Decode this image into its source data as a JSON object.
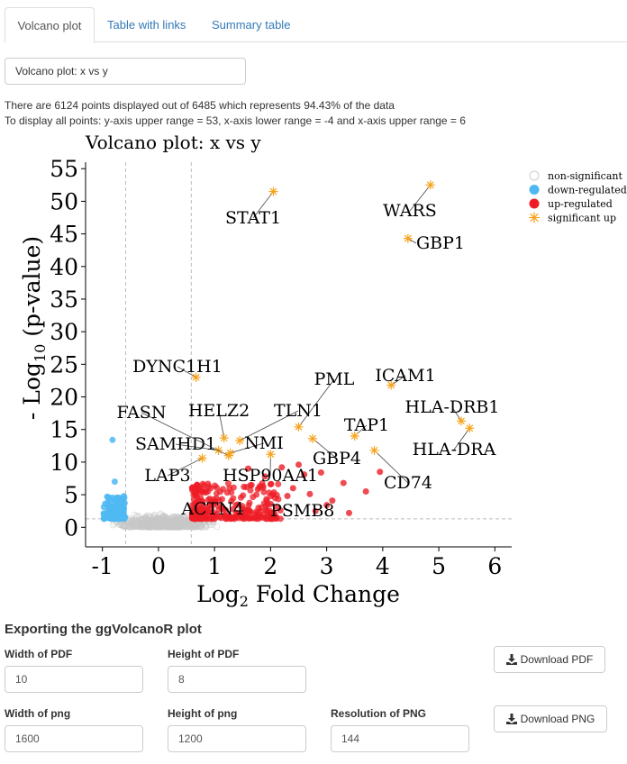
{
  "tabs": [
    {
      "label": "Volcano plot"
    },
    {
      "label": "Table with links"
    },
    {
      "label": "Summary table"
    }
  ],
  "select": {
    "value": "Volcano plot: x vs y"
  },
  "info": {
    "line1": "There are 6124 points displayed out of 6485 which represents 94.43% of the data",
    "line2": "To display all points: y-axis upper range = 53, x-axis lower range = -4 and x-axis upper range = 6"
  },
  "chart_data": {
    "type": "scatter",
    "title": "Volcano plot: x vs y",
    "xlabel": "Log2 Fold Change",
    "ylabel": "- Log10 (p-value)",
    "xlim": [
      -1.3,
      6.3
    ],
    "ylim": [
      -3,
      56
    ],
    "xticks": [
      "-1",
      "0",
      "1",
      "2",
      "3",
      "4",
      "5",
      "6"
    ],
    "yticks": [
      "0",
      "5",
      "10",
      "15",
      "20",
      "25",
      "30",
      "35",
      "40",
      "45",
      "50",
      "55"
    ],
    "threshold_x": [
      -0.585,
      0.585
    ],
    "threshold_y": 1.3,
    "legend": {
      "position": "right",
      "items": [
        "non-significant",
        "down-regulated",
        "up-regulated",
        "significant up"
      ]
    },
    "colors": {
      "nonsig": "#c8c8c8",
      "down": "#4fb8f2",
      "up": "#ee1c25",
      "sig": "#f6a31b"
    },
    "significant_up": [
      {
        "name": "WARS",
        "x": 4.85,
        "y": 52.5
      },
      {
        "name": "STAT1",
        "x": 2.05,
        "y": 51.5
      },
      {
        "name": "GBP1",
        "x": 4.45,
        "y": 44.3
      },
      {
        "name": "DYNC1H1",
        "x": 0.67,
        "y": 23.0
      },
      {
        "name": "ICAM1",
        "x": 4.15,
        "y": 21.8
      },
      {
        "name": "PML",
        "x": 2.5,
        "y": 15.4
      },
      {
        "name": "HLA-DRB1",
        "x": 5.4,
        "y": 16.3
      },
      {
        "name": "HLA-DRA",
        "x": 5.55,
        "y": 15.2
      },
      {
        "name": "TAP1",
        "x": 3.5,
        "y": 14.0
      },
      {
        "name": "TLN1",
        "x": 1.45,
        "y": 13.3
      },
      {
        "name": "GBP4",
        "x": 2.75,
        "y": 13.6
      },
      {
        "name": "HELZ2",
        "x": 1.17,
        "y": 13.7
      },
      {
        "name": "NMI",
        "x": 1.28,
        "y": 11.4
      },
      {
        "name": "SAMHD1",
        "x": 1.07,
        "y": 11.8
      },
      {
        "name": "FASN",
        "x": 1.25,
        "y": 11.0
      },
      {
        "name": "CD74",
        "x": 3.85,
        "y": 11.8
      },
      {
        "name": "LAP3",
        "x": 0.78,
        "y": 10.6
      },
      {
        "name": "HSP90AA1",
        "x": 2.0,
        "y": 11.2
      }
    ],
    "annotations": [
      {
        "text": "ACTN4",
        "x": 1.0,
        "y": 2.0
      },
      {
        "text": "PSMB8",
        "x": 2.6,
        "y": 1.7
      }
    ]
  },
  "export": {
    "heading": "Exporting the ggVolcanoR plot",
    "pdf_width_label": "Width of PDF",
    "pdf_width": "10",
    "pdf_height_label": "Height of PDF",
    "pdf_height": "8",
    "png_width_label": "Width of png",
    "png_width": "1600",
    "png_height_label": "Height of png",
    "png_height": "1200",
    "png_res_label": "Resolution of PNG",
    "png_res": "144",
    "download_pdf": "Download PDF",
    "download_png": "Download PNG",
    "download_icon": "download-icon"
  }
}
